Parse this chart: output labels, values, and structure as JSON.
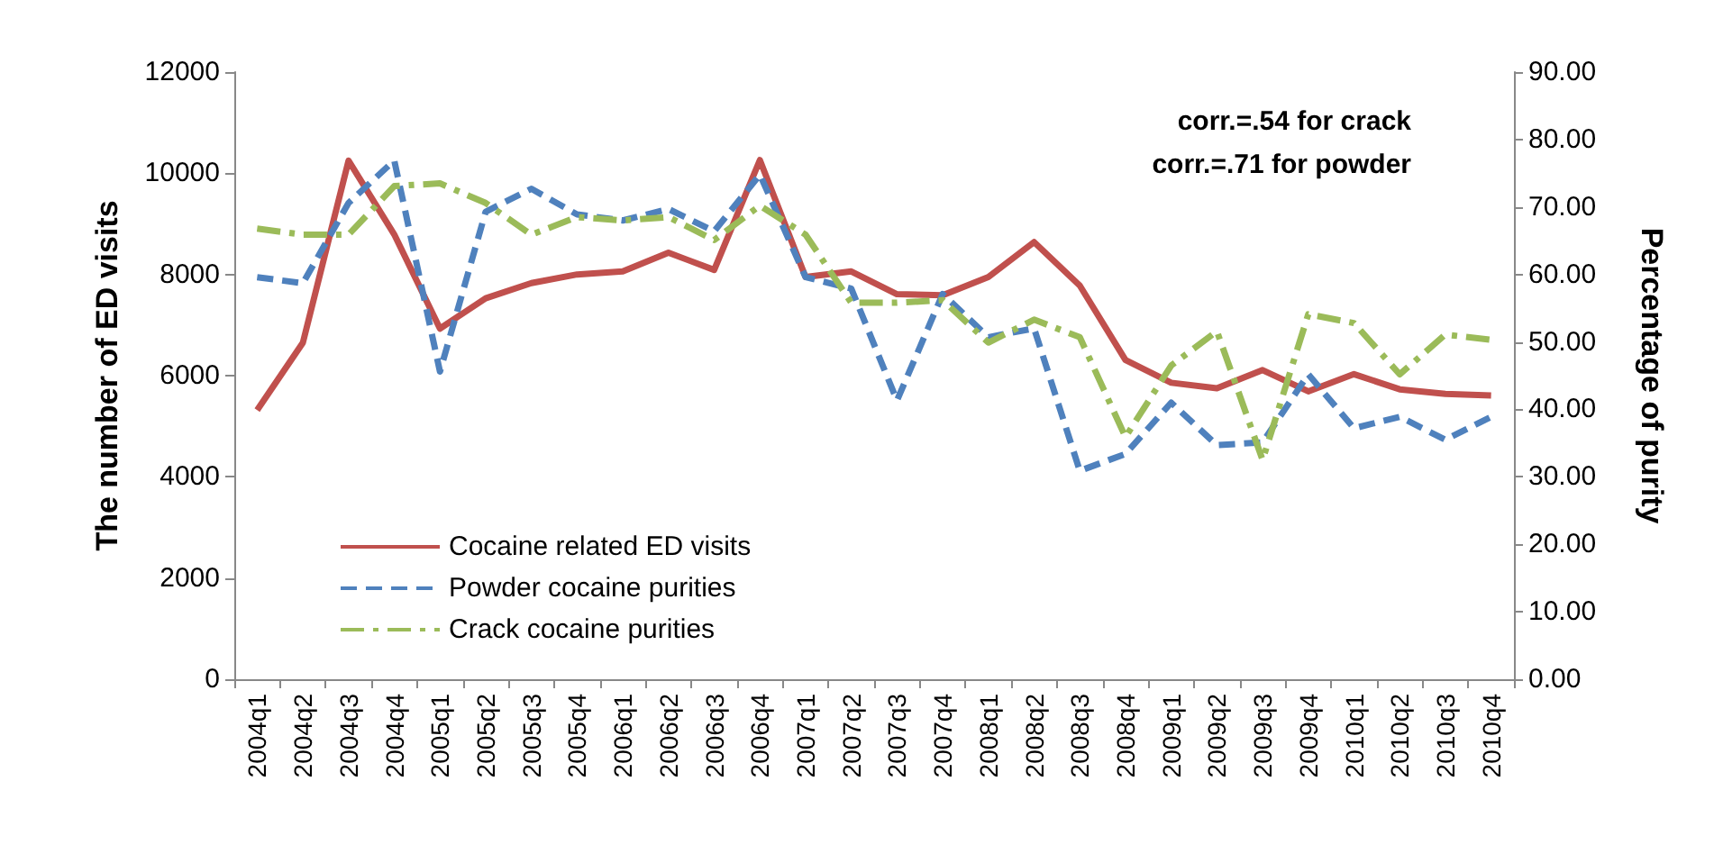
{
  "chart_data": {
    "type": "line",
    "ylabel": "The number of ED visits",
    "y2label": "Percentage of purity",
    "categories": [
      "2004q1",
      "2004q2",
      "2004q3",
      "2004q4",
      "2005q1",
      "2005q2",
      "2005q3",
      "2005q4",
      "2006q1",
      "2006q2",
      "2006q3",
      "2006q4",
      "2007q1",
      "2007q2",
      "2007q3",
      "2007q4",
      "2008q1",
      "2008q2",
      "2008q3",
      "2008q4",
      "2009q1",
      "2009q2",
      "2009q3",
      "2009q4",
      "2010q1",
      "2010q2",
      "2010q3",
      "2010q4"
    ],
    "series": [
      {
        "name": "Cocaine related ED visits",
        "color": "#c0504d",
        "line_style": "solid",
        "values": [
          5320,
          6650,
          10250,
          8790,
          6930,
          7530,
          7830,
          8000,
          8060,
          8430,
          8090,
          10260,
          7950,
          8060,
          7610,
          7590,
          7950,
          8640,
          7780,
          6310,
          5860,
          5750,
          6110,
          5690,
          6030,
          5730,
          5640,
          5610
        ]
      },
      {
        "name": "Powder cocaine purities",
        "color": "#4f81bd",
        "line_style": "dashed",
        "axis": "y2",
        "values": [
          59.6,
          58.7,
          70.6,
          76.9,
          45.6,
          69.3,
          72.7,
          68.9,
          68.0,
          69.7,
          66.4,
          74.8,
          59.6,
          57.9,
          41.3,
          57.1,
          50.7,
          52.0,
          30.9,
          33.4,
          41.0,
          34.7,
          35.1,
          45.2,
          37.2,
          38.9,
          35.5,
          38.9
        ]
      },
      {
        "name": "Crack cocaine purities",
        "color": "#9bbb59",
        "line_style": "dashdot",
        "axis": "y2",
        "values": [
          66.8,
          65.9,
          65.9,
          73.1,
          73.5,
          70.6,
          65.9,
          68.5,
          68.0,
          68.5,
          65.1,
          70.2,
          65.9,
          55.8,
          55.8,
          56.2,
          49.9,
          53.3,
          50.7,
          35.9,
          46.5,
          51.6,
          32.5,
          54.1,
          52.8,
          45.2,
          51.1,
          50.3
        ]
      }
    ],
    "ylim": [
      0,
      12000
    ],
    "yticks": [
      0,
      2000,
      4000,
      6000,
      8000,
      10000,
      12000
    ],
    "y2lim": [
      0,
      90
    ],
    "y2ticks": [
      {
        "value": 0,
        "label": "0.00"
      },
      {
        "value": 10,
        "label": "10.00"
      },
      {
        "value": 20,
        "label": "20.00"
      },
      {
        "value": 30,
        "label": "30.00"
      },
      {
        "value": 40,
        "label": "40.00"
      },
      {
        "value": 50,
        "label": "50.00"
      },
      {
        "value": 60,
        "label": "60.00"
      },
      {
        "value": 70,
        "label": "70.00"
      },
      {
        "value": 80,
        "label": "80.00"
      },
      {
        "value": 90,
        "label": "90.00"
      }
    ],
    "annotations": [
      "corr.=.54 for crack",
      "corr.=.71 for powder"
    ],
    "legend": "bottom left",
    "grid": false,
    "marker": "none"
  }
}
